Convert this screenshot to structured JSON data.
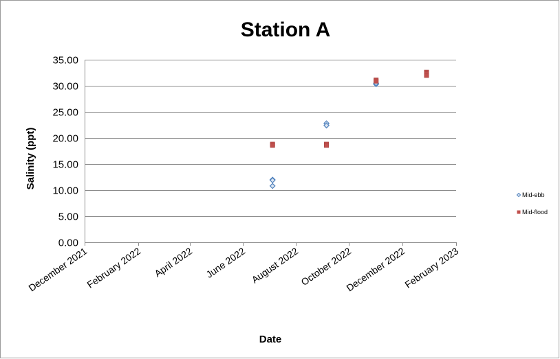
{
  "chart_data": {
    "type": "scatter",
    "title": "Station A",
    "xlabel": "Date",
    "ylabel": "Salinity (ppt)",
    "x_axis": {
      "type": "date",
      "range": [
        "2021-12-01",
        "2023-02-01"
      ],
      "tick_dates": [
        "2021-12-01",
        "2022-02-01",
        "2022-04-01",
        "2022-06-01",
        "2022-08-01",
        "2022-10-01",
        "2022-12-01",
        "2023-02-01"
      ],
      "tick_labels": [
        "December 2021",
        "February 2022",
        "April 2022",
        "June 2022",
        "August 2022",
        "October 2022",
        "December 2022",
        "February 2023"
      ]
    },
    "y_axis": {
      "range": [
        0,
        35
      ],
      "tick_values": [
        0,
        5,
        10,
        15,
        20,
        25,
        30,
        35
      ],
      "tick_labels": [
        "0.00",
        "5.00",
        "10.00",
        "15.00",
        "20.00",
        "25.00",
        "30.00",
        "35.00"
      ]
    },
    "grid": "horizontal",
    "legend_position": "right",
    "series": [
      {
        "name": "Mid-ebb",
        "marker": "diamond",
        "color": "#4f81bd",
        "points": [
          {
            "x": "2022-07-05",
            "y": 12.0
          },
          {
            "x": "2022-07-05",
            "y": 11.9
          },
          {
            "x": "2022-07-05",
            "y": 10.8
          },
          {
            "x": "2022-09-05",
            "y": 22.8
          },
          {
            "x": "2022-09-05",
            "y": 22.4
          },
          {
            "x": "2022-11-01",
            "y": 30.3
          },
          {
            "x": "2022-11-01",
            "y": 30.5
          }
        ]
      },
      {
        "name": "Mid-flood",
        "marker": "square",
        "color": "#c0504d",
        "points": [
          {
            "x": "2022-07-05",
            "y": 18.8
          },
          {
            "x": "2022-07-05",
            "y": 18.6
          },
          {
            "x": "2022-09-05",
            "y": 18.8
          },
          {
            "x": "2022-09-05",
            "y": 18.6
          },
          {
            "x": "2022-11-01",
            "y": 31.1
          },
          {
            "x": "2022-11-01",
            "y": 30.9
          },
          {
            "x": "2022-12-29",
            "y": 32.6
          },
          {
            "x": "2022-12-29",
            "y": 32.3
          },
          {
            "x": "2022-12-29",
            "y": 32.0
          }
        ]
      }
    ]
  }
}
